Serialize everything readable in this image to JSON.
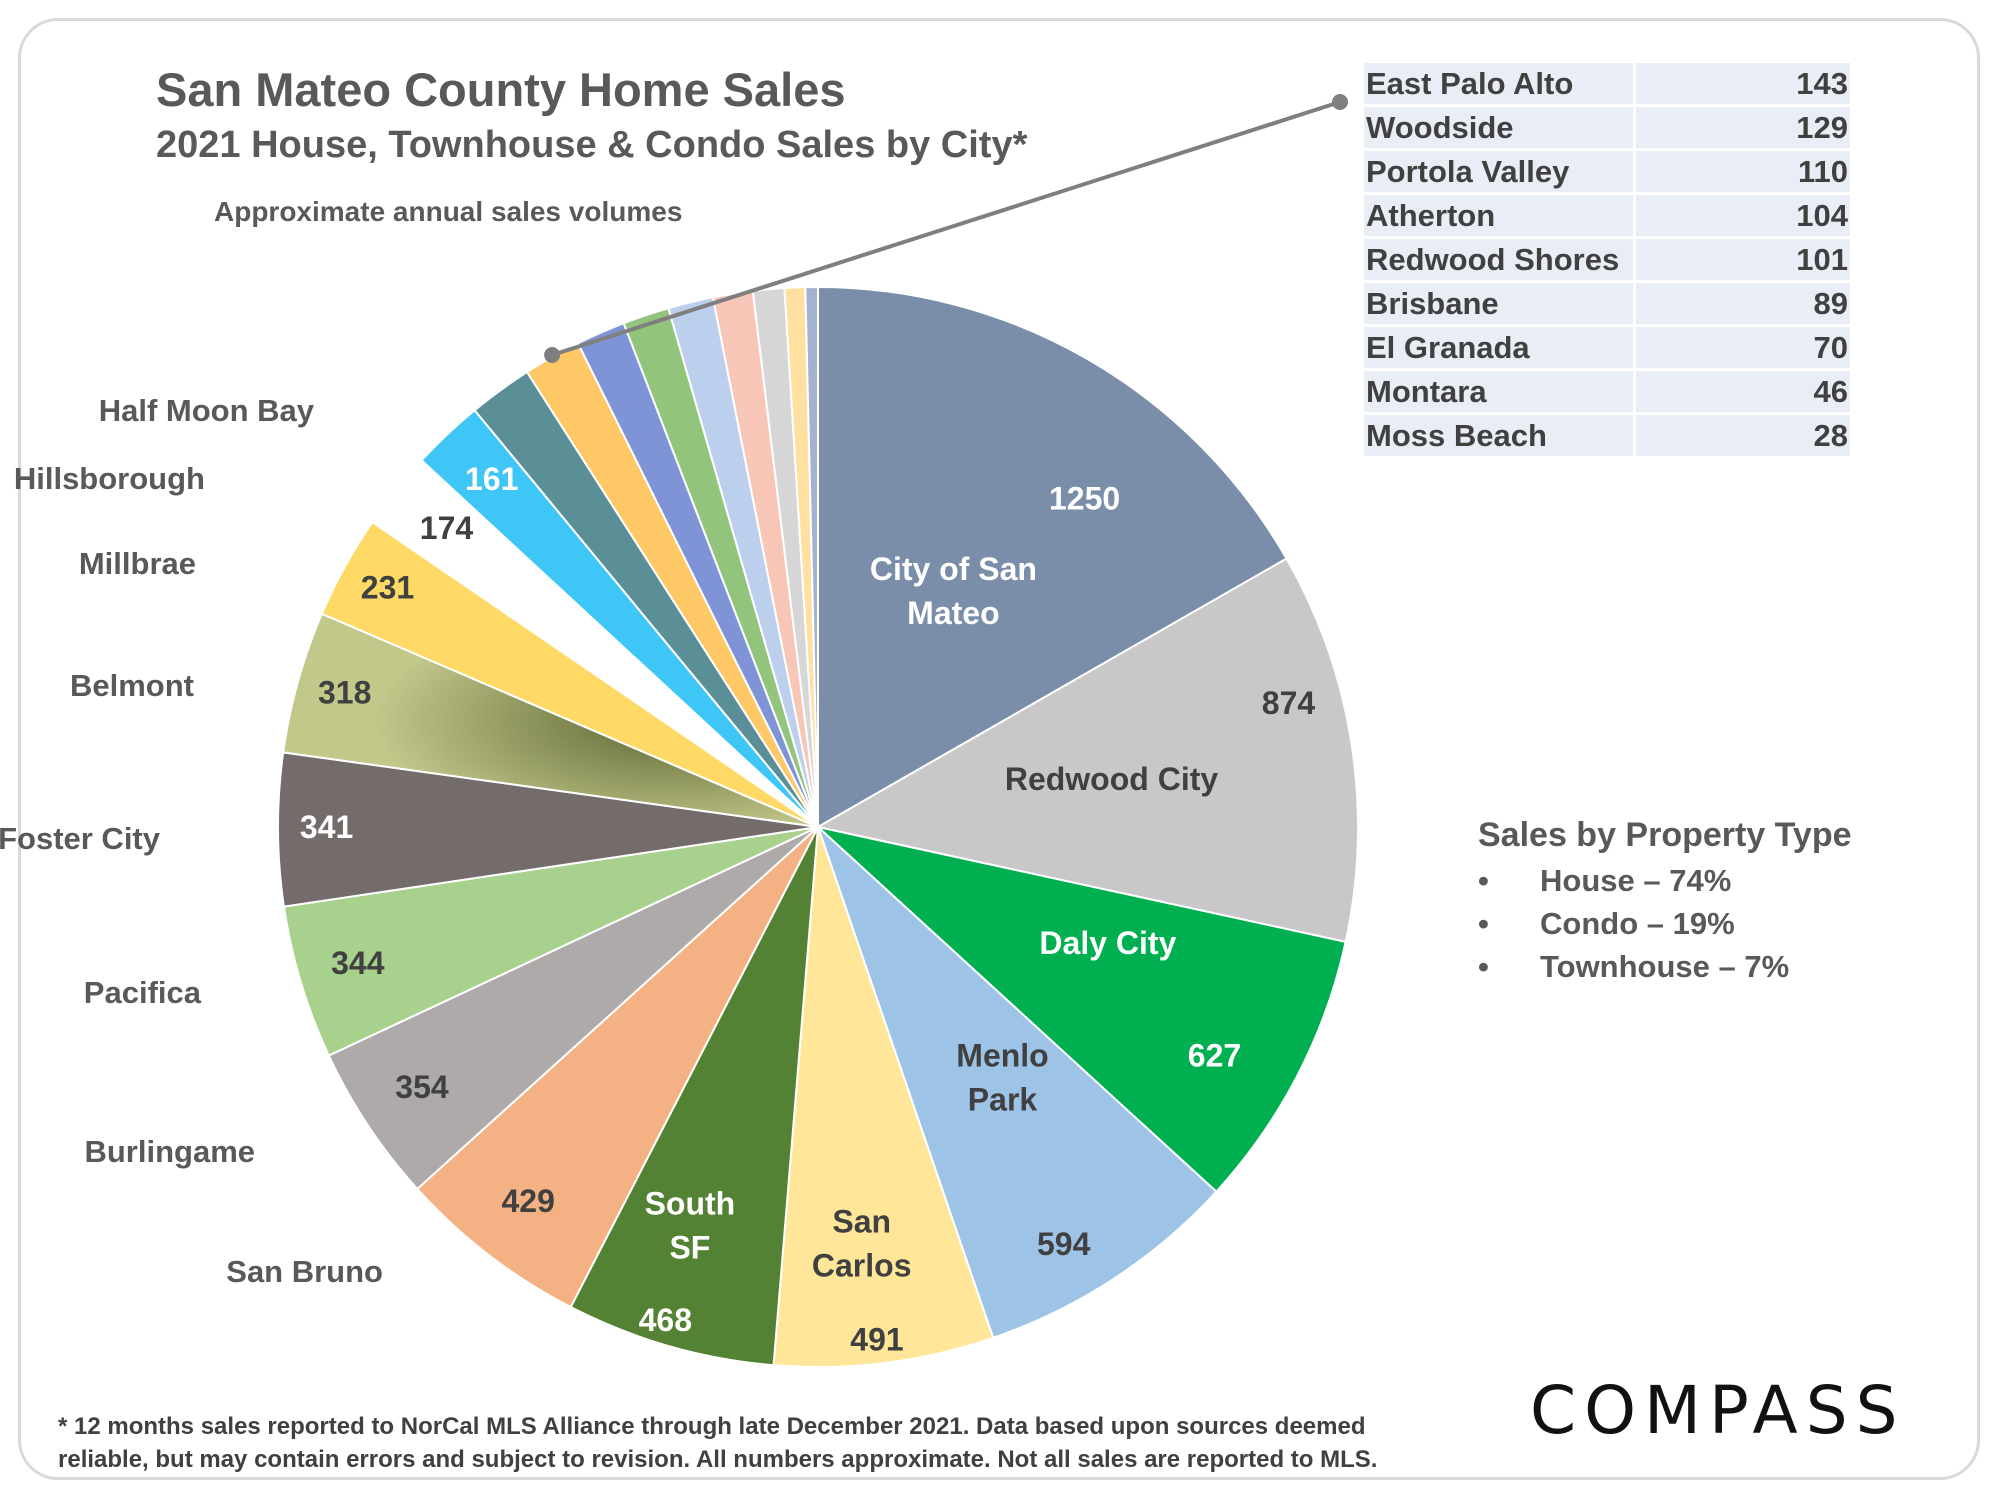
{
  "chart_data": {
    "type": "pie",
    "title": "San Mateo County Home Sales",
    "subtitle": "2021 House, Townhouse & Condo Sales by City*",
    "note": "Approximate annual sales volumes",
    "slices": [
      {
        "name": "City of San Mateo",
        "value": 1250,
        "color": "#7a8ea9"
      },
      {
        "name": "Redwood City",
        "value": 874,
        "color": "#c8c8c8"
      },
      {
        "name": "Daly City",
        "value": 627,
        "color": "#00b050"
      },
      {
        "name": "Menlo Park",
        "value": 594,
        "color": "#9dc3e6"
      },
      {
        "name": "San Carlos",
        "value": 491,
        "color": "#ffe699"
      },
      {
        "name": "South SF",
        "value": 468,
        "color": "#548235"
      },
      {
        "name": "San Bruno",
        "value": 429,
        "color": "#f4b183"
      },
      {
        "name": "Burlingame",
        "value": 354,
        "color": "#aeaaaa"
      },
      {
        "name": "Pacifica",
        "value": 344,
        "color": "#a9d18e"
      },
      {
        "name": "Foster City",
        "value": 341,
        "color": "#746b6b"
      },
      {
        "name": "Belmont",
        "value": 318,
        "color": "#a8ad6a"
      },
      {
        "name": "Millbrae",
        "value": 231,
        "color": "#ffd966"
      },
      {
        "name": "Hillsborough",
        "value": 174,
        "color": "#ffffff"
      },
      {
        "name": "Half Moon Bay",
        "value": 161,
        "color": "#3ec6f6"
      },
      {
        "name": "East Palo Alto",
        "value": 143,
        "color": "#5b8f98"
      },
      {
        "name": "Woodside",
        "value": 129,
        "color": "#ffc866"
      },
      {
        "name": "Portola Valley",
        "value": 110,
        "color": "#7f94d6"
      },
      {
        "name": "Atherton",
        "value": 104,
        "color": "#92c47c"
      },
      {
        "name": "Redwood Shores",
        "value": 101,
        "color": "#bcd0ee"
      },
      {
        "name": "Brisbane",
        "value": 89,
        "color": "#f8c6b6"
      },
      {
        "name": "El Granada",
        "value": 70,
        "color": "#d6d6d6"
      },
      {
        "name": "Montara",
        "value": 46,
        "color": "#ffe0a0"
      },
      {
        "name": "Moss Beach",
        "value": 28,
        "color": "#a3b2cf"
      }
    ],
    "small_table": [
      {
        "city": "East Palo Alto",
        "value": "143"
      },
      {
        "city": "Woodside",
        "value": "129"
      },
      {
        "city": "Portola Valley",
        "value": "110"
      },
      {
        "city": "Atherton",
        "value": "104"
      },
      {
        "city": "Redwood Shores",
        "value": "101"
      },
      {
        "city": "Brisbane",
        "value": "89"
      },
      {
        "city": "El Granada",
        "value": "70"
      },
      {
        "city": "Montara",
        "value": "46"
      },
      {
        "city": "Moss Beach",
        "value": "28"
      }
    ],
    "slice_labels": [
      {
        "name": "City of San Mateo",
        "lines": [
          "City of San",
          "Mateo"
        ],
        "value": "1250"
      },
      {
        "name": "Redwood City",
        "lines": [
          "Redwood City"
        ],
        "value": "874"
      },
      {
        "name": "Daly City",
        "lines": [
          "Daly City"
        ],
        "value": "627"
      },
      {
        "name": "Menlo Park",
        "lines": [
          "Menlo",
          "Park"
        ],
        "value": "594"
      },
      {
        "name": "San Carlos",
        "lines": [
          "San",
          "Carlos"
        ],
        "value": "491"
      },
      {
        "name": "South SF",
        "lines": [
          "South",
          "SF"
        ],
        "value": "468"
      },
      {
        "name": "San Bruno",
        "lines": [
          "San Bruno"
        ],
        "value": "429"
      },
      {
        "name": "Burlingame",
        "lines": [
          "Burlingame"
        ],
        "value": "354"
      },
      {
        "name": "Pacifica",
        "lines": [
          "Pacifica"
        ],
        "value": "344"
      },
      {
        "name": "Foster City",
        "lines": [
          "Foster City"
        ],
        "value": "341"
      },
      {
        "name": "Belmont",
        "lines": [
          "Belmont"
        ],
        "value": "318"
      },
      {
        "name": "Millbrae",
        "lines": [
          "Millbrae"
        ],
        "value": "231"
      },
      {
        "name": "Hillsborough",
        "lines": [
          "Hillsborough"
        ],
        "value": "174"
      },
      {
        "name": "Half Moon Bay",
        "lines": [
          "Half Moon Bay"
        ],
        "value": "161"
      }
    ]
  },
  "property_type": {
    "title": "Sales by Property Type",
    "bullet": "•",
    "items": [
      "House – 74%",
      "Condo – 19%",
      "Townhouse – 7%"
    ]
  },
  "footnote": {
    "line1": "* 12 months sales reported to NorCal MLS Alliance through late December 2021. Data based upon sources deemed",
    "line2": "reliable, but may contain errors and subject to revision. All numbers approximate. Not all sales are reported to MLS."
  },
  "logo": "COMPASS"
}
